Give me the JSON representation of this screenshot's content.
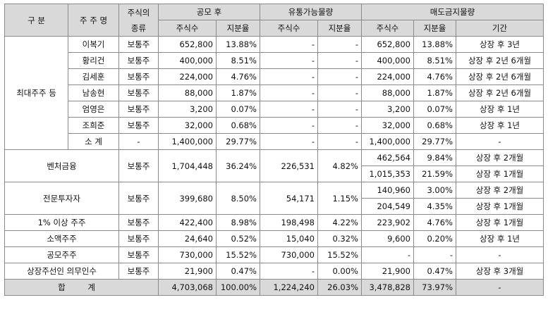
{
  "headers": {
    "category": "구 분",
    "holder": "주 주 명",
    "stock_type_line1": "주식의",
    "stock_type_line2": "종류",
    "after_offering": "공모 후",
    "tradable": "유통가능물량",
    "lockup": "매도금지물량",
    "shares": "주식수",
    "ratio": "지분율",
    "period": "기간"
  },
  "largest_holders": {
    "label": "최대주주 등",
    "rows": [
      {
        "name": "이복기",
        "type": "보통주",
        "shares": "652,800",
        "ratio": "13.88%",
        "t_shares": "-",
        "t_ratio": "-",
        "l_shares": "652,800",
        "l_ratio": "13.88%",
        "period": "상장 후 3년"
      },
      {
        "name": "황리건",
        "type": "보통주",
        "shares": "400,000",
        "ratio": "8.51%",
        "t_shares": "-",
        "t_ratio": "-",
        "l_shares": "400,000",
        "l_ratio": "8.51%",
        "period": "상장 후 2년 6개월"
      },
      {
        "name": "김세훈",
        "type": "보통주",
        "shares": "224,000",
        "ratio": "4.76%",
        "t_shares": "-",
        "t_ratio": "-",
        "l_shares": "224,000",
        "l_ratio": "4.76%",
        "period": "상장 후 2년 6개월"
      },
      {
        "name": "남송현",
        "type": "보통주",
        "shares": "88,000",
        "ratio": "1.87%",
        "t_shares": "-",
        "t_ratio": "-",
        "l_shares": "88,000",
        "l_ratio": "1.87%",
        "period": "상장 후 2년 6개월"
      },
      {
        "name": "엄영은",
        "type": "보통주",
        "shares": "3,200",
        "ratio": "0.07%",
        "t_shares": "-",
        "t_ratio": "-",
        "l_shares": "3,200",
        "l_ratio": "0.07%",
        "period": "상장 후 1년"
      },
      {
        "name": "조희준",
        "type": "보통주",
        "shares": "32,000",
        "ratio": "0.68%",
        "t_shares": "-",
        "t_ratio": "-",
        "l_shares": "32,000",
        "l_ratio": "0.68%",
        "period": "상장 후 1년"
      },
      {
        "name": "소 계",
        "type": "-",
        "shares": "1,400,000",
        "ratio": "29.77%",
        "t_shares": "-",
        "t_ratio": "-",
        "l_shares": "1,400,000",
        "l_ratio": "29.77%",
        "period": "-"
      }
    ]
  },
  "venture": {
    "label": "벤처금융",
    "type": "보통주",
    "shares": "1,704,448",
    "ratio": "36.24%",
    "t_shares": "226,531",
    "t_ratio": "4.82%",
    "lockups": [
      {
        "l_shares": "462,564",
        "l_ratio": "9.84%",
        "period": "상장 후 2개월"
      },
      {
        "l_shares": "1,015,353",
        "l_ratio": "21.59%",
        "period": "상장 후 1개월"
      }
    ]
  },
  "professional": {
    "label": "전문투자자",
    "type": "보통주",
    "shares": "399,680",
    "ratio": "8.50%",
    "t_shares": "54,171",
    "t_ratio": "1.15%",
    "lockups": [
      {
        "l_shares": "140,960",
        "l_ratio": "3.00%",
        "period": "상장 후 2개월"
      },
      {
        "l_shares": "204,549",
        "l_ratio": "4.35%",
        "period": "상장 후 1개월"
      }
    ]
  },
  "others": [
    {
      "label": "1% 이상 주주",
      "type": "보통주",
      "shares": "422,400",
      "ratio": "8.98%",
      "t_shares": "198,498",
      "t_ratio": "4.22%",
      "l_shares": "223,902",
      "l_ratio": "4.76%",
      "period": "상장 후 1개월"
    },
    {
      "label": "소액주주",
      "type": "보통주",
      "shares": "24,640",
      "ratio": "0.52%",
      "t_shares": "15,040",
      "t_ratio": "0.32%",
      "l_shares": "9,600",
      "l_ratio": "0.20%",
      "period": "상장 후 1년"
    },
    {
      "label": "공모주주",
      "type": "보통주",
      "shares": "730,000",
      "ratio": "15.52%",
      "t_shares": "730,000",
      "t_ratio": "15.52%",
      "l_shares": "-",
      "l_ratio": "-",
      "period": "-"
    },
    {
      "label": "상장주선인 의무인수",
      "type": "보통주",
      "shares": "21,900",
      "ratio": "0.47%",
      "t_shares": "-",
      "t_ratio": "0.00%",
      "l_shares": "21,900",
      "l_ratio": "0.47%",
      "period": "상장 후 3개월"
    }
  ],
  "total": {
    "label": "합 계",
    "shares": "4,703,068",
    "ratio": "100.00%",
    "t_shares": "1,224,240",
    "t_ratio": "26.03%",
    "l_shares": "3,478,828",
    "l_ratio": "73.97%",
    "period": "-"
  }
}
